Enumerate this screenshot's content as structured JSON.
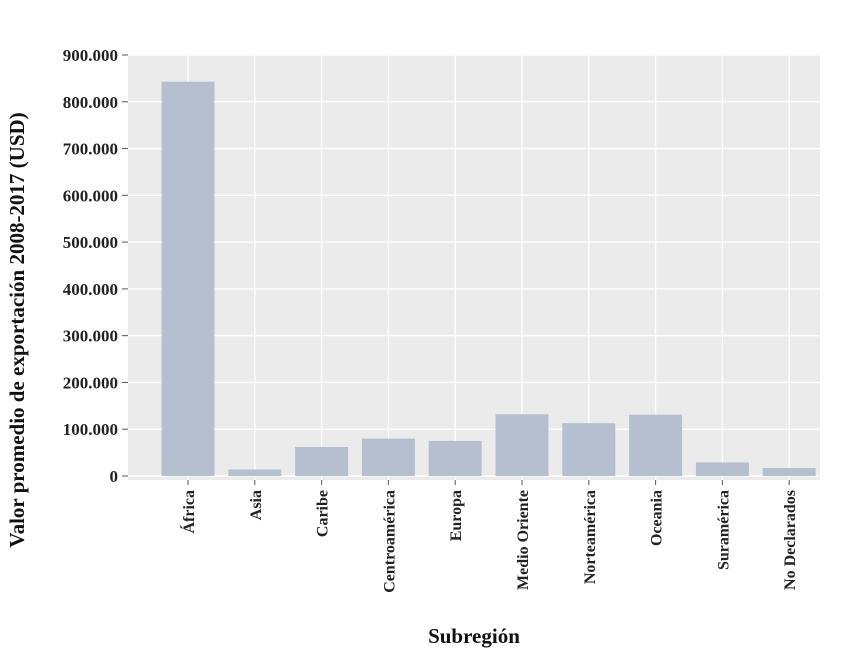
{
  "chart_data": {
    "type": "bar",
    "title": "",
    "xlabel": "Subregión",
    "ylabel": "Valor promedio de exportación 2008-2017 (USD)",
    "categories": [
      "África",
      "Asia",
      "Caribe",
      "Centroamérica",
      "Europa",
      "Medio Oriente",
      "Norteamérica",
      "Oceania",
      "Suramérica",
      "No Declarados"
    ],
    "values": [
      843000,
      14000,
      62000,
      80000,
      75000,
      132000,
      113000,
      131000,
      29000,
      17000
    ],
    "ylim": [
      0,
      900000
    ],
    "yticks": [
      0,
      100000,
      200000,
      300000,
      400000,
      500000,
      600000,
      700000,
      800000,
      900000
    ],
    "ytick_labels": [
      "0",
      "100.000",
      "200.000",
      "300.000",
      "400.000",
      "500.000",
      "600.000",
      "700.000",
      "800.000",
      "900.000"
    ],
    "grid": true,
    "colors": {
      "panel": "#ebebeb",
      "bar": "#b6bfcf",
      "grid": "#ffffff"
    }
  }
}
